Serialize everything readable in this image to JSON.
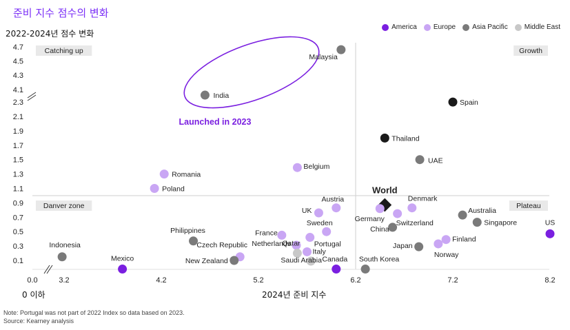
{
  "title": "준비 지수 점수의 변화",
  "ylabel": "2022-2024년 점수 변화",
  "xlabel": "2024년 준비 지수",
  "x_zero_label": "0 이하",
  "note": "Note: Portugal was not part of 2022 Index so data based on 2023.",
  "source": "Source: Kearney analysis",
  "annotation": "Launched in 2023",
  "colors": {
    "America": "#7a1fe0",
    "Europe": "#c9a6f4",
    "Asia Pacific": "#7a7a7a",
    "Middle East": "#c8c8c8",
    "Highlight": "#1a1a1a",
    "accent": "#7b2ff7"
  },
  "legend": [
    "America",
    "Europe",
    "Asia Pacific",
    "Middle East"
  ],
  "quadrants": {
    "top_left": "Catching up",
    "top_right": "Growth",
    "bottom_left": "Danver zone",
    "bottom_right": "Plateau"
  },
  "chart_data": {
    "type": "scatter",
    "x_ticks": [
      "0.0",
      "3.2",
      "4.2",
      "5.2",
      "6.2",
      "7.2",
      "8.2"
    ],
    "y_ticks": [
      "0.1",
      "0.3",
      "0.5",
      "0.7",
      "0.9",
      "1.1",
      "1.3",
      "1.5",
      "1.7",
      "1.9",
      "2.1",
      "2.3",
      "4.1",
      "4.3",
      "4.5",
      "4.7"
    ],
    "x_divider": 6.2,
    "y_divider": 1.0,
    "points": [
      {
        "name": "Malaysia",
        "x": 6.05,
        "y": 4.66,
        "group": "Asia Pacific"
      },
      {
        "name": "India",
        "x": 4.65,
        "y": 4.02,
        "group": "Asia Pacific"
      },
      {
        "name": "Spain",
        "x": 7.2,
        "y": 2.3,
        "group": "Highlight"
      },
      {
        "name": "Thailand",
        "x": 6.5,
        "y": 1.8,
        "group": "Highlight"
      },
      {
        "name": "UAE",
        "x": 6.86,
        "y": 1.5,
        "group": "Asia Pacific"
      },
      {
        "name": "Belgium",
        "x": 5.6,
        "y": 1.39,
        "group": "Europe"
      },
      {
        "name": "Romania",
        "x": 4.23,
        "y": 1.3,
        "group": "Europe"
      },
      {
        "name": "Poland",
        "x": 4.13,
        "y": 1.1,
        "group": "Europe"
      },
      {
        "name": "World",
        "x": 6.5,
        "y": 0.87,
        "group": "Highlight"
      },
      {
        "name": "Austria",
        "x": 6.0,
        "y": 0.83,
        "group": "Europe"
      },
      {
        "name": "UK",
        "x": 5.82,
        "y": 0.76,
        "group": "Europe"
      },
      {
        "name": "Germany",
        "x": 6.45,
        "y": 0.82,
        "group": "Europe"
      },
      {
        "name": "Denmark",
        "x": 6.78,
        "y": 0.83,
        "group": "Europe"
      },
      {
        "name": "Switzerland",
        "x": 6.63,
        "y": 0.75,
        "group": "Europe"
      },
      {
        "name": "Australia",
        "x": 7.3,
        "y": 0.73,
        "group": "Asia Pacific"
      },
      {
        "name": "Singapore",
        "x": 7.45,
        "y": 0.63,
        "group": "Asia Pacific"
      },
      {
        "name": "US",
        "x": 8.2,
        "y": 0.47,
        "group": "America"
      },
      {
        "name": "China",
        "x": 6.58,
        "y": 0.56,
        "group": "Asia Pacific"
      },
      {
        "name": "Sweden",
        "x": 5.9,
        "y": 0.5,
        "group": "Europe"
      },
      {
        "name": "France",
        "x": 5.44,
        "y": 0.45,
        "group": "Europe"
      },
      {
        "name": "Portugal",
        "x": 5.73,
        "y": 0.42,
        "group": "Europe"
      },
      {
        "name": "Philippines",
        "x": 4.53,
        "y": 0.37,
        "group": "Asia Pacific"
      },
      {
        "name": "Netherlands",
        "x": 5.59,
        "y": 0.31,
        "group": "Europe"
      },
      {
        "name": "Finland",
        "x": 7.13,
        "y": 0.39,
        "group": "Europe"
      },
      {
        "name": "Norway",
        "x": 7.05,
        "y": 0.33,
        "group": "Europe"
      },
      {
        "name": "Japan",
        "x": 6.85,
        "y": 0.29,
        "group": "Asia Pacific"
      },
      {
        "name": "Italy",
        "x": 5.7,
        "y": 0.22,
        "group": "Europe"
      },
      {
        "name": "Qatar",
        "x": 5.6,
        "y": 0.2,
        "group": "Middle East"
      },
      {
        "name": "Saudi Arabia",
        "x": 5.74,
        "y": 0.09,
        "group": "Middle East"
      },
      {
        "name": "Czech Republic",
        "x": 5.01,
        "y": 0.15,
        "group": "Europe"
      },
      {
        "name": "New Zealand",
        "x": 4.95,
        "y": 0.1,
        "group": "Asia Pacific"
      },
      {
        "name": "Indonesia",
        "x": 3.0,
        "y": 0.15,
        "group": "Asia Pacific"
      },
      {
        "name": "Mexico",
        "x": 3.8,
        "y": -0.02,
        "group": "America"
      },
      {
        "name": "Canada",
        "x": 6.0,
        "y": -0.02,
        "group": "America"
      },
      {
        "name": "South Korea",
        "x": 6.3,
        "y": -0.02,
        "group": "Asia Pacific"
      }
    ]
  }
}
